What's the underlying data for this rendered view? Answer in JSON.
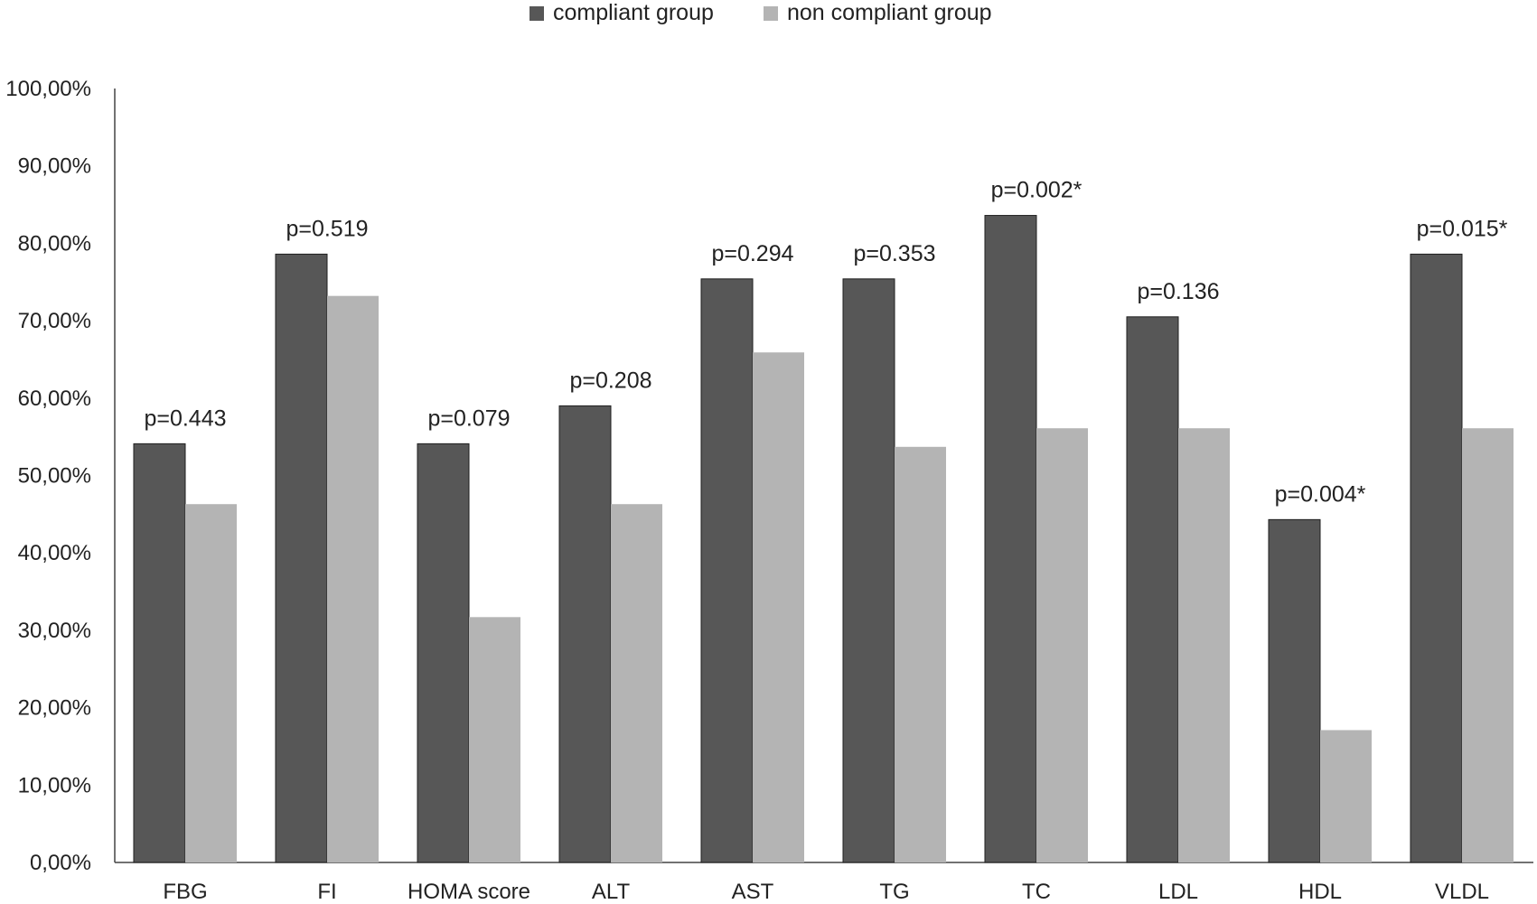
{
  "colors": {
    "compliant": "#575757",
    "non_compliant": "#b4b4b4",
    "axis": "#444444",
    "bar_outline": "#1f1f1f"
  },
  "legend": {
    "items": [
      {
        "label": "compliant group"
      },
      {
        "label": "non compliant group"
      }
    ]
  },
  "chart_data": {
    "type": "bar",
    "title": "",
    "xlabel": "",
    "ylabel": "",
    "ylim": [
      0,
      100
    ],
    "y_ticks": [
      "0,00%",
      "10,00%",
      "20,00%",
      "30,00%",
      "40,00%",
      "50,00%",
      "60,00%",
      "70,00%",
      "80,00%",
      "90,00%",
      "100,00%"
    ],
    "grid": false,
    "legend_position": "top-center",
    "categories": [
      "FBG",
      "FI",
      "HOMA score",
      "ALT",
      "AST",
      "TG",
      "TC",
      "LDL",
      "HDL",
      "VLDL"
    ],
    "series": [
      {
        "name": "compliant group",
        "values": [
          54.1,
          78.6,
          54.1,
          59.0,
          75.4,
          75.4,
          83.6,
          70.5,
          44.3,
          78.6
        ]
      },
      {
        "name": "non compliant group",
        "values": [
          46.3,
          73.2,
          31.7,
          46.3,
          65.9,
          53.7,
          56.1,
          56.1,
          17.1,
          56.1
        ]
      }
    ],
    "annotations": [
      "p=0.443",
      "p=0.519",
      "p=0.079",
      "p=0.208",
      "p=0.294",
      "p=0.353",
      "p=0.002*",
      "p=0.136",
      "p=0.004*",
      "p=0.015*"
    ]
  }
}
